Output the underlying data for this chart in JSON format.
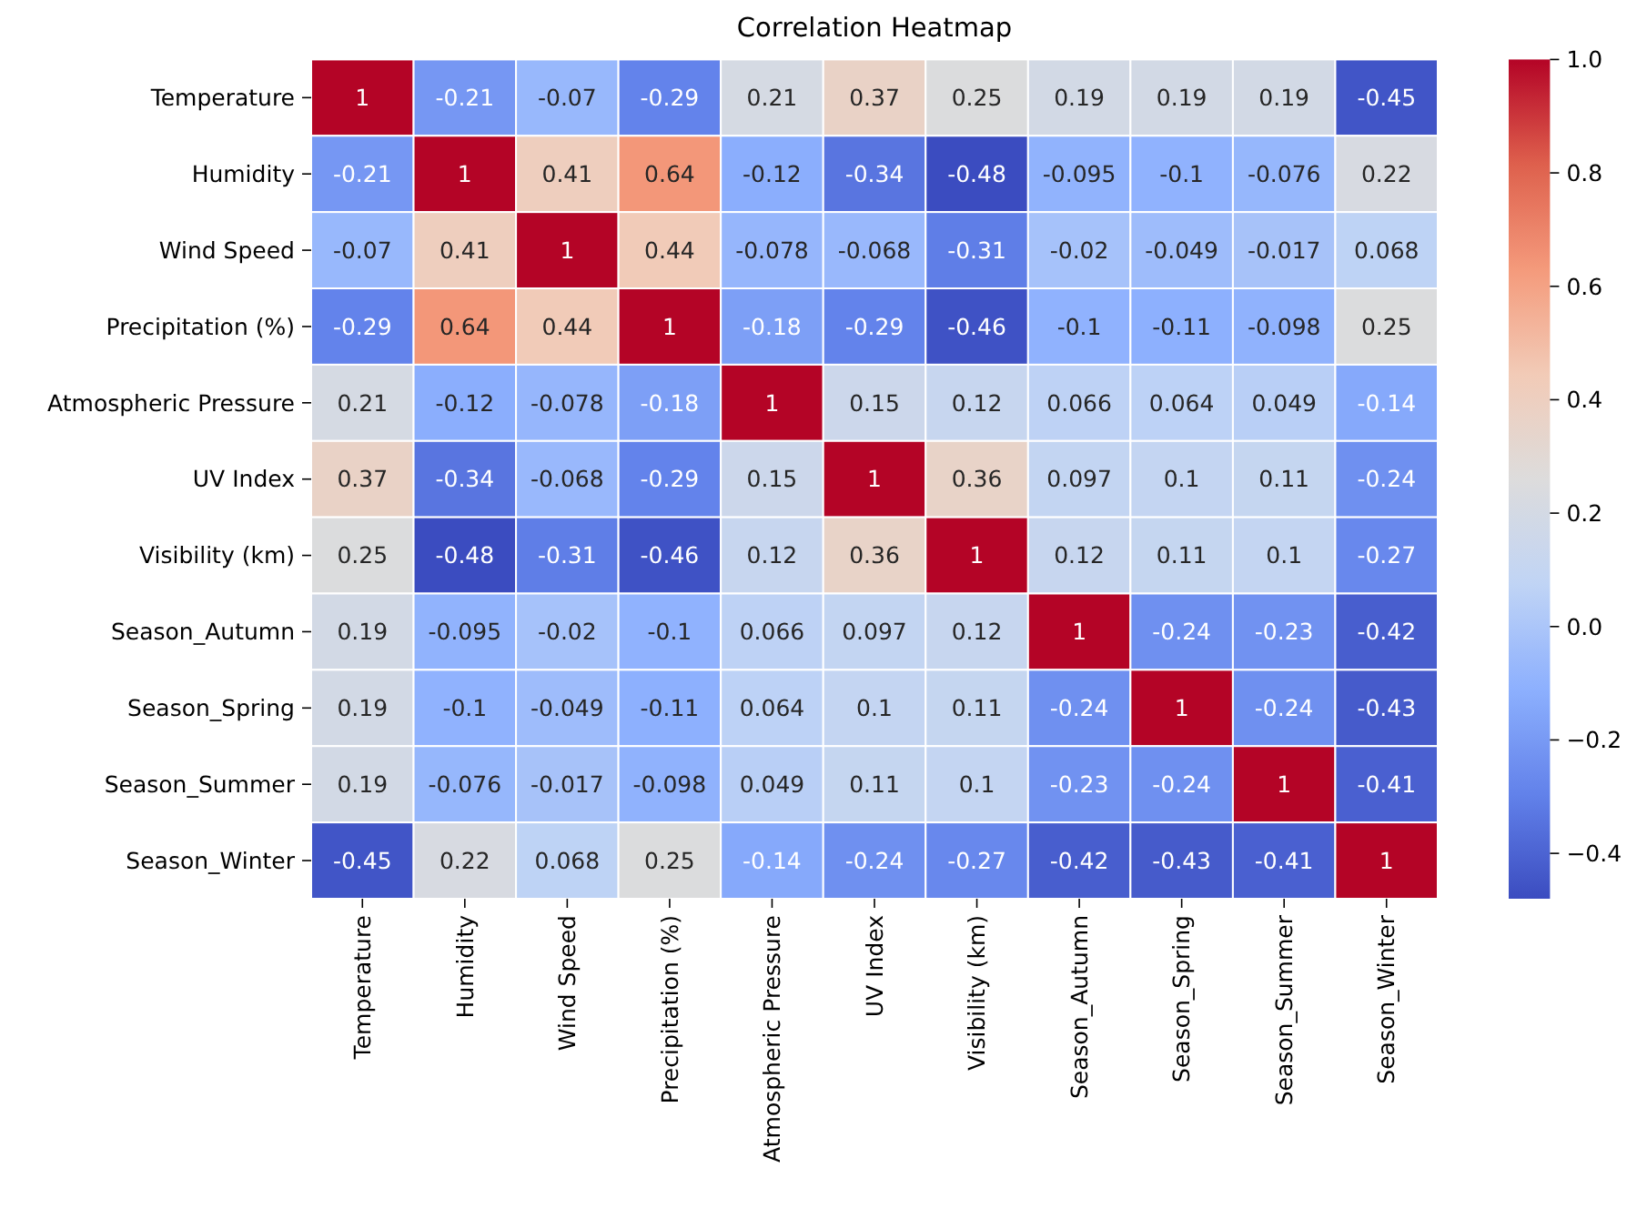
{
  "chart_data": {
    "type": "heatmap",
    "title": "Correlation Heatmap",
    "categories": [
      "Temperature",
      "Humidity",
      "Wind Speed",
      "Precipitation (%)",
      "Atmospheric Pressure",
      "UV Index",
      "Visibility (km)",
      "Season_Autumn",
      "Season_Spring",
      "Season_Summer",
      "Season_Winter"
    ],
    "y_categories": [
      "Temperature",
      "Humidity",
      "Wind Speed",
      "Precipitation (%)",
      "Atmospheric Pressure",
      "UV Index",
      "Visibility (km)",
      "Season_Autumn",
      "Season_Spring",
      "Season_Summer",
      "Season_Winter"
    ],
    "cells": [
      [
        1,
        -0.21,
        -0.07,
        -0.29,
        0.21,
        0.37,
        0.25,
        0.19,
        0.19,
        0.19,
        -0.45
      ],
      [
        -0.21,
        1,
        0.41,
        0.64,
        -0.12,
        -0.34,
        -0.48,
        -0.095,
        -0.1,
        -0.076,
        0.22
      ],
      [
        -0.07,
        0.41,
        1,
        0.44,
        -0.078,
        -0.068,
        -0.31,
        -0.02,
        -0.049,
        -0.017,
        0.068
      ],
      [
        -0.29,
        0.64,
        0.44,
        1,
        -0.18,
        -0.29,
        -0.46,
        -0.1,
        -0.11,
        -0.098,
        0.25
      ],
      [
        0.21,
        -0.12,
        -0.078,
        -0.18,
        1,
        0.15,
        0.12,
        0.066,
        0.064,
        0.049,
        -0.14
      ],
      [
        0.37,
        -0.34,
        -0.068,
        -0.29,
        0.15,
        1,
        0.36,
        0.097,
        0.1,
        0.11,
        -0.24
      ],
      [
        0.25,
        -0.48,
        -0.31,
        -0.46,
        0.12,
        0.36,
        1,
        0.12,
        0.11,
        0.1,
        -0.27
      ],
      [
        0.19,
        -0.095,
        -0.02,
        -0.1,
        0.066,
        0.097,
        0.12,
        1,
        -0.24,
        -0.23,
        -0.42
      ],
      [
        0.19,
        -0.1,
        -0.049,
        -0.11,
        0.064,
        0.1,
        0.11,
        -0.24,
        1,
        -0.24,
        -0.43
      ],
      [
        0.19,
        -0.076,
        -0.017,
        -0.098,
        0.049,
        0.11,
        0.1,
        -0.23,
        -0.24,
        1,
        -0.41
      ],
      [
        -0.45,
        0.22,
        0.068,
        0.25,
        -0.14,
        -0.24,
        -0.27,
        -0.42,
        -0.43,
        -0.41,
        1
      ]
    ],
    "clim": [
      -0.48,
      1
    ],
    "cticks": [
      {
        "value": -0.4,
        "label": "−0.4"
      },
      {
        "value": -0.2,
        "label": "−0.2"
      },
      {
        "value": 0,
        "label": "0.0"
      },
      {
        "value": 0.2,
        "label": "0.2"
      },
      {
        "value": 0.4,
        "label": "0.4"
      },
      {
        "value": 0.6,
        "label": "0.6"
      },
      {
        "value": 0.8,
        "label": "0.8"
      },
      {
        "value": 1,
        "label": "1.0"
      }
    ],
    "data_labels": true
  }
}
